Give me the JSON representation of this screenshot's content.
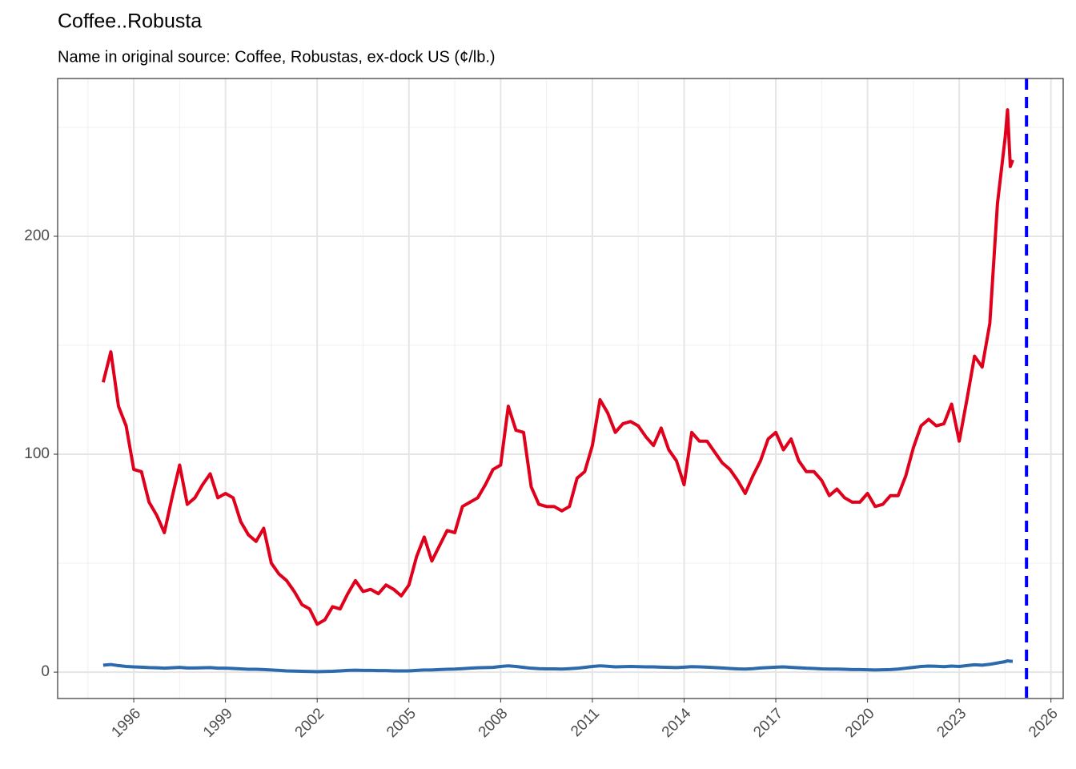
{
  "chart_data": {
    "type": "line",
    "title": "Coffee..Robusta",
    "subtitle": "Name in original source: Coffee, Robustas, ex-dock US (¢/lb.)",
    "x": [
      1995.0,
      1995.25,
      1995.5,
      1995.75,
      1996.0,
      1996.25,
      1996.5,
      1996.75,
      1997.0,
      1997.25,
      1997.5,
      1997.75,
      1998.0,
      1998.25,
      1998.5,
      1998.75,
      1999.0,
      1999.25,
      1999.5,
      1999.75,
      2000.0,
      2000.25,
      2000.5,
      2000.75,
      2001.0,
      2001.25,
      2001.5,
      2001.75,
      2002.0,
      2002.25,
      2002.5,
      2002.75,
      2003.0,
      2003.25,
      2003.5,
      2003.75,
      2004.0,
      2004.25,
      2004.5,
      2004.75,
      2005.0,
      2005.25,
      2005.5,
      2005.75,
      2006.0,
      2006.25,
      2006.5,
      2006.75,
      2007.0,
      2007.25,
      2007.5,
      2007.75,
      2008.0,
      2008.25,
      2008.5,
      2008.75,
      2009.0,
      2009.25,
      2009.5,
      2009.75,
      2010.0,
      2010.25,
      2010.5,
      2010.75,
      2011.0,
      2011.25,
      2011.5,
      2011.75,
      2012.0,
      2012.25,
      2012.5,
      2012.75,
      2013.0,
      2013.25,
      2013.5,
      2013.75,
      2014.0,
      2014.25,
      2014.5,
      2014.75,
      2015.0,
      2015.25,
      2015.5,
      2015.75,
      2016.0,
      2016.25,
      2016.5,
      2016.75,
      2017.0,
      2017.25,
      2017.5,
      2017.75,
      2018.0,
      2018.25,
      2018.5,
      2018.75,
      2019.0,
      2019.25,
      2019.5,
      2019.75,
      2020.0,
      2020.25,
      2020.5,
      2020.75,
      2021.0,
      2021.25,
      2021.5,
      2021.75,
      2022.0,
      2022.25,
      2022.5,
      2022.75,
      2023.0,
      2023.25,
      2023.5,
      2023.75,
      2024.0,
      2024.25,
      2024.5,
      2024.58,
      2024.67,
      2024.75
    ],
    "series": [
      {
        "color": "#e0001b",
        "values": [
          133,
          147,
          122,
          113,
          93,
          92,
          78,
          72,
          64,
          80,
          95,
          77,
          80,
          86,
          91,
          80,
          82,
          80,
          69,
          63,
          60,
          66,
          50,
          45,
          42,
          37,
          31,
          29,
          22,
          24,
          30,
          29,
          36,
          42,
          37,
          38,
          36,
          40,
          38,
          35,
          40,
          53,
          62,
          51,
          58,
          65,
          64,
          76,
          78,
          80,
          86,
          93,
          95,
          122,
          111,
          110,
          85,
          77,
          76,
          76,
          74,
          76,
          89,
          92,
          104,
          125,
          119,
          110,
          114,
          115,
          113,
          108,
          104,
          112,
          102,
          97,
          86,
          110,
          106,
          106,
          101,
          96,
          93,
          88,
          82,
          90,
          97,
          107,
          110,
          102,
          107,
          97,
          92,
          92,
          88,
          81,
          84,
          80,
          78,
          78,
          82,
          76,
          77,
          81,
          81,
          90,
          103,
          113,
          116,
          113,
          114,
          123,
          106,
          125,
          145,
          140,
          160,
          215,
          245,
          258,
          232,
          235
        ]
      },
      {
        "color": "#2c6aab",
        "values": [
          3.2,
          3.5,
          3,
          2.6,
          2.4,
          2.3,
          2.1,
          2,
          1.8,
          2,
          2.2,
          1.9,
          1.9,
          2,
          2.1,
          1.8,
          1.8,
          1.7,
          1.5,
          1.3,
          1.3,
          1.2,
          1,
          0.8,
          0.6,
          0.5,
          0.4,
          0.3,
          0.2,
          0.3,
          0.4,
          0.6,
          0.8,
          0.9,
          0.8,
          0.8,
          0.7,
          0.7,
          0.6,
          0.6,
          0.6,
          0.8,
          1,
          1,
          1.2,
          1.3,
          1.4,
          1.6,
          1.8,
          2,
          2.1,
          2.2,
          2.6,
          2.9,
          2.6,
          2.2,
          1.8,
          1.6,
          1.5,
          1.5,
          1.4,
          1.6,
          1.8,
          2.2,
          2.6,
          2.9,
          2.7,
          2.4,
          2.5,
          2.6,
          2.5,
          2.4,
          2.4,
          2.3,
          2.2,
          2.1,
          2.3,
          2.5,
          2.4,
          2.3,
          2.1,
          1.9,
          1.7,
          1.5,
          1.4,
          1.6,
          1.9,
          2.1,
          2.3,
          2.4,
          2.2,
          2,
          1.8,
          1.7,
          1.5,
          1.4,
          1.4,
          1.3,
          1.2,
          1.2,
          1.1,
          1,
          1.1,
          1.2,
          1.4,
          1.8,
          2.2,
          2.6,
          2.8,
          2.7,
          2.5,
          2.8,
          2.6,
          3,
          3.4,
          3.2,
          3.6,
          4.2,
          4.8,
          5.2,
          5,
          5
        ]
      }
    ],
    "xlim": [
      1993.51,
      2026.4
    ],
    "ylim": [
      -12.1,
      272.4
    ],
    "xticks": [
      1996,
      1999,
      2002,
      2005,
      2008,
      2011,
      2014,
      2017,
      2020,
      2023,
      2026
    ],
    "yticks": [
      0,
      100,
      200
    ],
    "xminor": [
      1994.5,
      1997.5,
      2000.5,
      2003.5,
      2006.5,
      2009.5,
      2012.5,
      2015.5,
      2018.5,
      2021.5,
      2024.5
    ],
    "yminor": [
      50,
      150,
      250
    ],
    "grid": true,
    "vline": 2025.2,
    "vline_color": "#0000ff"
  }
}
